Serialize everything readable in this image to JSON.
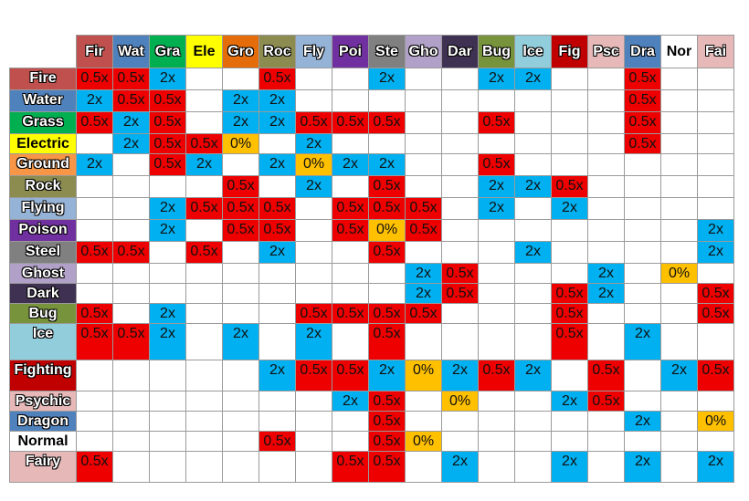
{
  "colors": {
    "half": "#ee0000",
    "double": "#00b0f0",
    "zero": "#ffc000",
    "neutral": "#ffffff"
  },
  "chart_data": {
    "type": "table",
    "title": "",
    "attack_label_position": "left",
    "columns": [
      {
        "label": "Fir",
        "bg": "#c0504d",
        "fg": "#111111"
      },
      {
        "label": "Wat",
        "bg": "#4f81bd",
        "fg": "#111111"
      },
      {
        "label": "Gra",
        "bg": "#00b050",
        "fg": "#111111"
      },
      {
        "label": "Ele",
        "bg": "#ffff00",
        "fg": "#111111"
      },
      {
        "label": "Gro",
        "bg": "#e46c0a",
        "fg": "#111111"
      },
      {
        "label": "Roc",
        "bg": "#8c8c50",
        "fg": "#111111"
      },
      {
        "label": "Fly",
        "bg": "#95b3d7",
        "fg": "#111111"
      },
      {
        "label": "Poi",
        "bg": "#7030a0",
        "fg": "#111111"
      },
      {
        "label": "Ste",
        "bg": "#808080",
        "fg": "#111111"
      },
      {
        "label": "Gho",
        "bg": "#b1a0c7",
        "fg": "#111111"
      },
      {
        "label": "Dar",
        "bg": "#3f3151",
        "fg": "#111111"
      },
      {
        "label": "Bug",
        "bg": "#77933c",
        "fg": "#111111"
      },
      {
        "label": "Ice",
        "bg": "#92cddc",
        "fg": "#111111"
      },
      {
        "label": "Fig",
        "bg": "#c00000",
        "fg": "#111111"
      },
      {
        "label": "Psc",
        "bg": "#e6b9b8",
        "fg": "#111111"
      },
      {
        "label": "Dra",
        "bg": "#4f81bd",
        "fg": "#111111"
      },
      {
        "label": "Nor",
        "bg": "#ffffff",
        "fg": "#111111"
      },
      {
        "label": "Fai",
        "bg": "#e6b9b8",
        "fg": "#111111"
      }
    ],
    "rows": [
      {
        "label": "Fire",
        "bg": "#c0504d",
        "fg": "#111111",
        "cells": [
          "0.5x",
          "0.5x",
          "2x",
          "",
          "",
          "0.5x",
          "",
          "",
          "2x",
          "",
          "",
          "2x",
          "2x",
          "",
          "",
          "0.5x",
          "",
          ""
        ]
      },
      {
        "label": "Water",
        "bg": "#4f81bd",
        "fg": "#111111",
        "cells": [
          "2x",
          "0.5x",
          "0.5x",
          "",
          "2x",
          "2x",
          "",
          "",
          "",
          "",
          "",
          "",
          "",
          "",
          "",
          "0.5x",
          "",
          ""
        ]
      },
      {
        "label": "Grass",
        "bg": "#00b050",
        "fg": "#111111",
        "cells": [
          "0.5x",
          "2x",
          "0.5x",
          "",
          "2x",
          "2x",
          "0.5x",
          "0.5x",
          "0.5x",
          "",
          "",
          "0.5x",
          "",
          "",
          "",
          "0.5x",
          "",
          ""
        ]
      },
      {
        "label": "Electric",
        "bg": "#ffff00",
        "fg": "#111111",
        "cells": [
          "",
          "2x",
          "0.5x",
          "0.5x",
          "0%",
          "",
          "2x",
          "",
          "",
          "",
          "",
          "",
          "",
          "",
          "",
          "0.5x",
          "",
          ""
        ]
      },
      {
        "label": "Ground",
        "bg": "#f79646",
        "fg": "#111111",
        "cells": [
          "2x",
          "",
          "0.5x",
          "2x",
          "",
          "2x",
          "0%",
          "2x",
          "2x",
          "",
          "",
          "0.5x",
          "",
          "",
          "",
          "",
          "",
          ""
        ]
      },
      {
        "label": "Rock",
        "bg": "#8c8c50",
        "fg": "#111111",
        "cells": [
          "",
          "",
          "",
          "",
          "0.5x",
          "",
          "2x",
          "",
          "0.5x",
          "",
          "",
          "2x",
          "2x",
          "0.5x",
          "",
          "",
          "",
          ""
        ]
      },
      {
        "label": "Flying",
        "bg": "#95b3d7",
        "fg": "#111111",
        "cells": [
          "",
          "",
          "2x",
          "0.5x",
          "0.5x",
          "0.5x",
          "",
          "0.5x",
          "0.5x",
          "0.5x",
          "",
          "2x",
          "",
          "2x",
          "",
          "",
          "",
          ""
        ]
      },
      {
        "label": "Poison",
        "bg": "#7030a0",
        "fg": "#111111",
        "cells": [
          "",
          "",
          "2x",
          "",
          "0.5x",
          "0.5x",
          "",
          "0.5x",
          "0%",
          "0.5x",
          "",
          "",
          "",
          "",
          "",
          "",
          "",
          "2x"
        ]
      },
      {
        "label": "Steel",
        "bg": "#808080",
        "fg": "#111111",
        "cells": [
          "0.5x",
          "0.5x",
          "",
          "0.5x",
          "",
          "2x",
          "",
          "",
          "0.5x",
          "",
          "",
          "",
          "2x",
          "",
          "",
          "",
          "",
          "2x"
        ]
      },
      {
        "label": "Ghost",
        "bg": "#b1a0c7",
        "fg": "#111111",
        "cells": [
          "",
          "",
          "",
          "",
          "",
          "",
          "",
          "",
          "",
          "2x",
          "0.5x",
          "",
          "",
          "",
          "2x",
          "",
          "0%",
          ""
        ]
      },
      {
        "label": "Dark",
        "bg": "#3f3151",
        "fg": "#111111",
        "cells": [
          "",
          "",
          "",
          "",
          "",
          "",
          "",
          "",
          "",
          "2x",
          "0.5x",
          "",
          "",
          "0.5x",
          "2x",
          "",
          "",
          "0.5x"
        ]
      },
      {
        "label": "Bug",
        "bg": "#77933c",
        "fg": "#111111",
        "cells": [
          "0.5x",
          "",
          "2x",
          "",
          "",
          "",
          "0.5x",
          "0.5x",
          "0.5x",
          "0.5x",
          "",
          "",
          "",
          "0.5x",
          "",
          "",
          "",
          "0.5x"
        ]
      },
      {
        "label": "Ice",
        "bg": "#92cddc",
        "fg": "#111111",
        "cells": [
          "0.5x",
          "0.5x",
          "2x",
          "",
          "2x",
          "",
          "2x",
          "",
          "0.5x",
          "",
          "",
          "",
          "",
          "0.5x",
          "",
          "2x",
          "",
          ""
        ]
      },
      {
        "label": "Fighting",
        "bg": "#c00000",
        "fg": "#111111",
        "cells": [
          "",
          "",
          "",
          "",
          "",
          "2x",
          "0.5x",
          "0.5x",
          "2x",
          "0%",
          "2x",
          "0.5x",
          "2x",
          "",
          "0.5x",
          "",
          "2x",
          "0.5x"
        ]
      },
      {
        "label": "Psychic",
        "bg": "#e6b9b8",
        "fg": "#111111",
        "cells": [
          "",
          "",
          "",
          "",
          "",
          "",
          "",
          "2x",
          "0.5x",
          "",
          "0%",
          "",
          "",
          "2x",
          "0.5x",
          "",
          "",
          ""
        ]
      },
      {
        "label": "Dragon",
        "bg": "#4f81bd",
        "fg": "#111111",
        "cells": [
          "",
          "",
          "",
          "",
          "",
          "",
          "",
          "",
          "0.5x",
          "",
          "",
          "",
          "",
          "",
          "",
          "2x",
          "",
          "0%"
        ]
      },
      {
        "label": "Normal",
        "bg": "#ffffff",
        "fg": "#111111",
        "cells": [
          "",
          "",
          "",
          "",
          "",
          "0.5x",
          "",
          "",
          "0.5x",
          "0%",
          "",
          "",
          "",
          "",
          "",
          "",
          "",
          ""
        ]
      },
      {
        "label": "Fairy",
        "bg": "#e6b9b8",
        "fg": "#111111",
        "cells": [
          "0.5x",
          "",
          "",
          "",
          "",
          "",
          "",
          "0.5x",
          "0.5x",
          "",
          "2x",
          "",
          "",
          "2x",
          "",
          "2x",
          "",
          "2x"
        ]
      }
    ]
  }
}
